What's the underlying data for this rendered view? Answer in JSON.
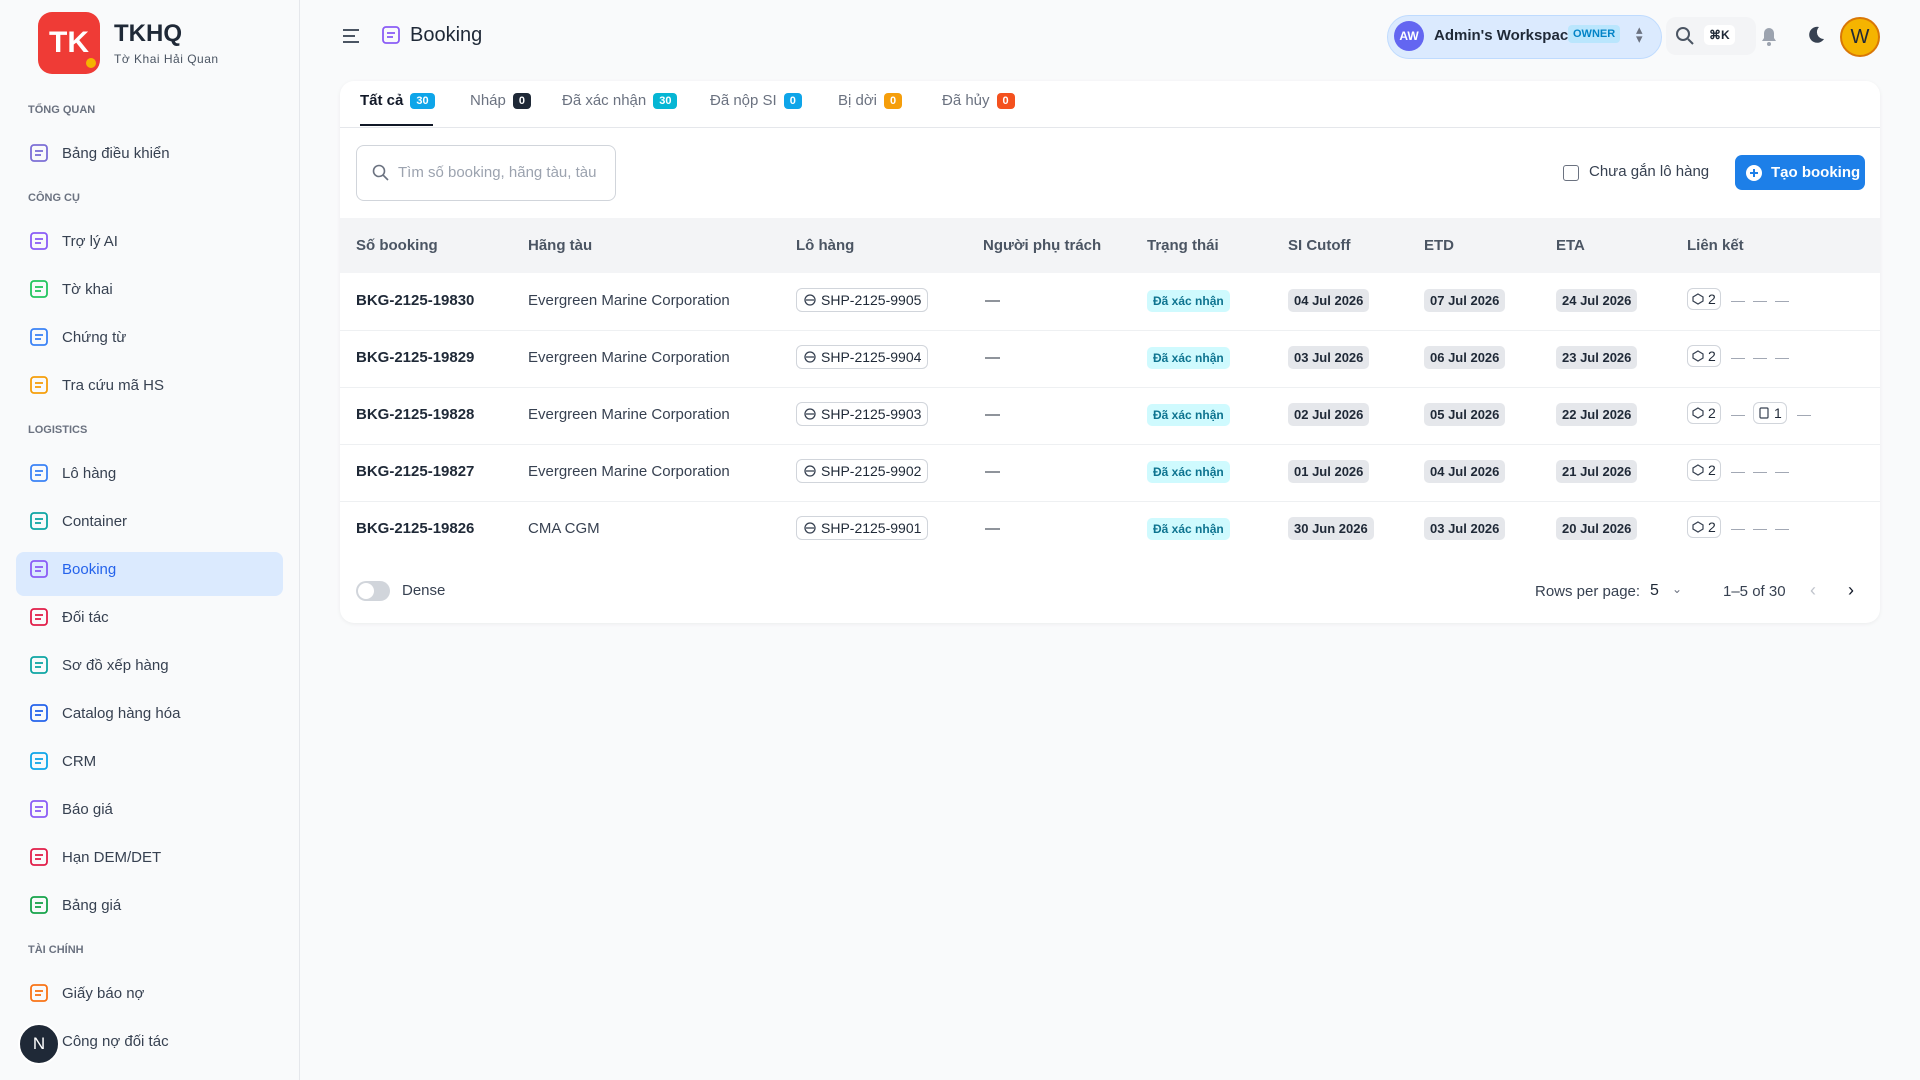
{
  "sidebar": {
    "brand": {
      "logo": "TK",
      "title": "TKHQ",
      "subtitle": "Tờ Khai Hải Quan"
    },
    "sections": [
      {
        "title": "TỔNG QUAN",
        "items": [
          {
            "label": "Bảng điều khiển",
            "color": "#7c6fd6"
          }
        ]
      },
      {
        "title": "CÔNG CỤ",
        "items": [
          {
            "label": "Trợ lý AI",
            "color": "#8b5cf6"
          },
          {
            "label": "Tờ khai",
            "color": "#22c55e"
          },
          {
            "label": "Chứng từ",
            "color": "#3b82f6"
          },
          {
            "label": "Tra cứu mã HS",
            "color": "#f59e0b"
          }
        ]
      },
      {
        "title": "LOGISTICS",
        "items": [
          {
            "label": "Lô hàng",
            "color": "#3b82f6"
          },
          {
            "label": "Container",
            "color": "#0ea5a4"
          },
          {
            "label": "Booking",
            "color": "#8b5cf6",
            "active": true
          },
          {
            "label": "Đối tác",
            "color": "#e11d48"
          },
          {
            "label": "Sơ đồ xếp hàng",
            "color": "#0ea5a4"
          },
          {
            "label": "Catalog hàng hóa",
            "color": "#2563eb"
          },
          {
            "label": "CRM",
            "color": "#0ea5e9"
          },
          {
            "label": "Báo giá",
            "color": "#8b5cf6"
          },
          {
            "label": "Hạn DEM/DET",
            "color": "#e11d48"
          },
          {
            "label": "Bảng giá",
            "color": "#16a34a"
          }
        ]
      },
      {
        "title": "TÀI CHÍNH",
        "items": [
          {
            "label": "Giấy báo nợ",
            "color": "#f97316"
          },
          {
            "label": "Công nợ đối tác",
            "color": "#f97316"
          }
        ]
      }
    ],
    "user_initial": "N"
  },
  "header": {
    "title": "Booking",
    "workspace": {
      "initials": "AW",
      "name": "Admin's Workspace",
      "role": "OWNER"
    },
    "shortcut": "⌘K",
    "avatar": "W"
  },
  "tabs": [
    {
      "label": "Tất cả",
      "count": 30,
      "color": "#0ea5e9",
      "active": true
    },
    {
      "label": "Nháp",
      "count": 0,
      "color": "#1f2937"
    },
    {
      "label": "Đã xác nhận",
      "count": 30,
      "color": "#06b6d4"
    },
    {
      "label": "Đã nộp SI",
      "count": 0,
      "color": "#0ea5e9"
    },
    {
      "label": "Bị dời",
      "count": 0,
      "color": "#f59e0b"
    },
    {
      "label": "Đã hủy",
      "count": 0,
      "color": "#f4511e"
    }
  ],
  "toolbar": {
    "search_placeholder": "Tìm số booking, hãng tàu, tàu",
    "checkbox": "Chưa gắn lô hàng",
    "button": "Tạo booking"
  },
  "table": {
    "columns": [
      "Số booking",
      "Hãng tàu",
      "Lô hàng",
      "Người phụ trách",
      "Trạng thái",
      "SI Cutoff",
      "ETD",
      "ETA",
      "Liên kết"
    ],
    "rows": [
      [
        "BKG-2125-19830",
        "Evergreen Marine Corporation",
        "SHP-2125-9905",
        "—",
        "Đã xác nhận",
        "04 Jul 2026",
        "07 Jul 2026",
        "24 Jul 2026",
        [
          "2",
          "—",
          "—",
          "—"
        ]
      ],
      [
        "BKG-2125-19829",
        "Evergreen Marine Corporation",
        "SHP-2125-9904",
        "—",
        "Đã xác nhận",
        "03 Jul 2026",
        "06 Jul 2026",
        "23 Jul 2026",
        [
          "2",
          "—",
          "—",
          "—"
        ]
      ],
      [
        "BKG-2125-19828",
        "Evergreen Marine Corporation",
        "SHP-2125-9903",
        "—",
        "Đã xác nhận",
        "02 Jul 2026",
        "05 Jul 2026",
        "22 Jul 2026",
        [
          "2",
          "—",
          "1",
          "—"
        ]
      ],
      [
        "BKG-2125-19827",
        "Evergreen Marine Corporation",
        "SHP-2125-9902",
        "—",
        "Đã xác nhận",
        "01 Jul 2026",
        "04 Jul 2026",
        "21 Jul 2026",
        [
          "2",
          "—",
          "—",
          "—"
        ]
      ],
      [
        "BKG-2125-19826",
        "CMA CGM",
        "SHP-2125-9901",
        "—",
        "Đã xác nhận",
        "30 Jun 2026",
        "03 Jul 2026",
        "20 Jul 2026",
        [
          "2",
          "—",
          "—",
          "—"
        ]
      ]
    ]
  },
  "footer": {
    "dense": "Dense",
    "rows_per_page_label": "Rows per page:",
    "rows_per_page": 5,
    "range": "1–5 of 30"
  }
}
